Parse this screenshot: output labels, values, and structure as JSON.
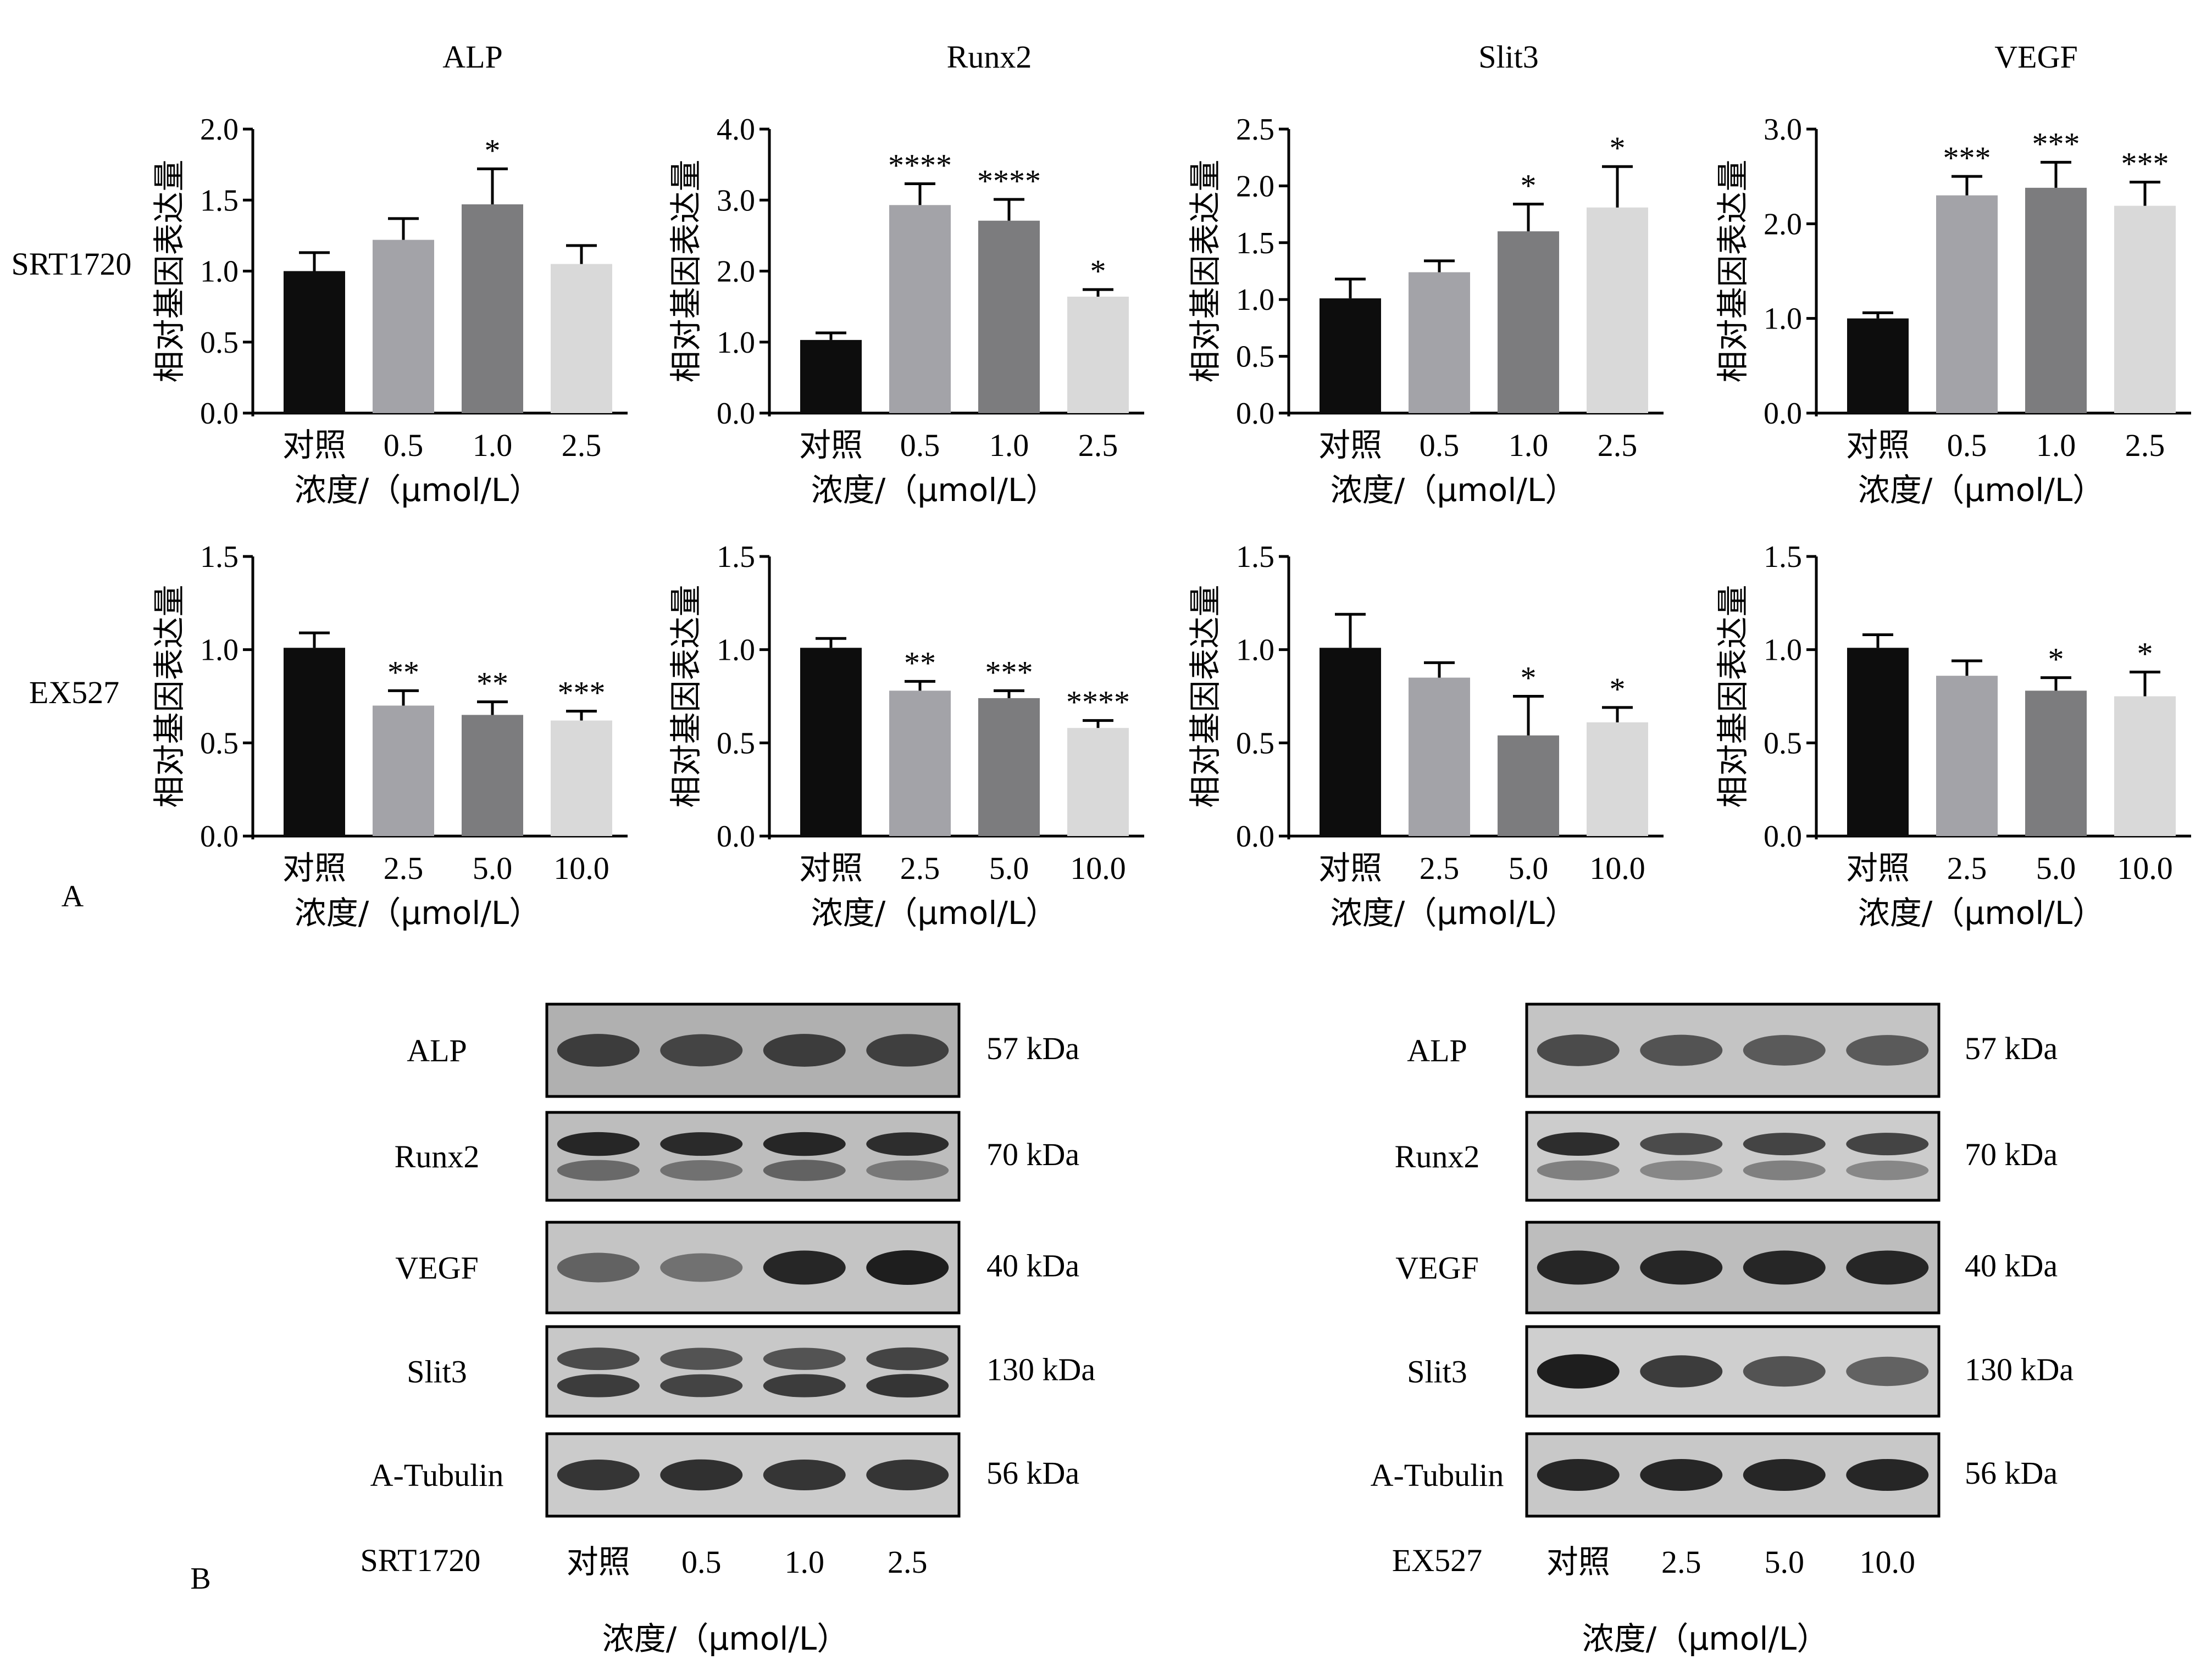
{
  "panel_labels": {
    "a": "A",
    "b": "B"
  },
  "rows": [
    {
      "label": "SRT1720"
    },
    {
      "label": "EX527"
    }
  ],
  "ylabel": "相对基因表达量",
  "xlabel": "浓度/（μmol/L）",
  "chart_data": [
    {
      "type": "bar",
      "title": "ALP",
      "row": 0,
      "col": 0,
      "categories": [
        "对照",
        "0.5",
        "1.0",
        "2.5"
      ],
      "values": [
        1.0,
        1.22,
        1.47,
        1.05
      ],
      "errors": [
        0.13,
        0.15,
        0.25,
        0.13
      ],
      "significance": [
        "",
        "",
        "*",
        ""
      ],
      "ylim": [
        0,
        2.0
      ],
      "yticks": [
        "0.0",
        "0.5",
        "1.0",
        "1.5",
        "2.0"
      ],
      "ylabel": "相对基因表达量",
      "xlabel": "浓度/（μmol/L）"
    },
    {
      "type": "bar",
      "title": "Runx2",
      "row": 0,
      "col": 1,
      "categories": [
        "对照",
        "0.5",
        "1.0",
        "2.5"
      ],
      "values": [
        1.03,
        2.93,
        2.71,
        1.64
      ],
      "errors": [
        0.1,
        0.3,
        0.3,
        0.1
      ],
      "significance": [
        "",
        "****",
        "****",
        "*"
      ],
      "ylim": [
        0,
        4.0
      ],
      "yticks": [
        "0.0",
        "1.0",
        "2.0",
        "3.0",
        "4.0"
      ],
      "ylabel": "相对基因表达量",
      "xlabel": "浓度/（μmol/L）"
    },
    {
      "type": "bar",
      "title": "Slit3",
      "row": 0,
      "col": 2,
      "categories": [
        "对照",
        "0.5",
        "1.0",
        "2.5"
      ],
      "values": [
        1.01,
        1.24,
        1.6,
        1.81
      ],
      "errors": [
        0.17,
        0.1,
        0.24,
        0.36
      ],
      "significance": [
        "",
        "",
        "*",
        "*"
      ],
      "ylim": [
        0,
        2.5
      ],
      "yticks": [
        "0.0",
        "0.5",
        "1.0",
        "1.5",
        "2.0",
        "2.5"
      ],
      "ylabel": "相对基因表达量",
      "xlabel": "浓度/（μmol/L）"
    },
    {
      "type": "bar",
      "title": "VEGF",
      "row": 0,
      "col": 3,
      "categories": [
        "对照",
        "0.5",
        "1.0",
        "2.5"
      ],
      "values": [
        1.0,
        2.3,
        2.38,
        2.19
      ],
      "errors": [
        0.06,
        0.2,
        0.27,
        0.25
      ],
      "significance": [
        "",
        "***",
        "***",
        "***"
      ],
      "ylim": [
        0,
        3.0
      ],
      "yticks": [
        "0.0",
        "1.0",
        "2.0",
        "3.0"
      ],
      "ylabel": "相对基因表达量",
      "xlabel": "浓度/（μmol/L）"
    },
    {
      "type": "bar",
      "title": "",
      "row": 1,
      "col": 0,
      "categories": [
        "对照",
        "2.5",
        "5.0",
        "10.0"
      ],
      "values": [
        1.01,
        0.7,
        0.65,
        0.62
      ],
      "errors": [
        0.08,
        0.08,
        0.07,
        0.05
      ],
      "significance": [
        "",
        "**",
        "**",
        "***"
      ],
      "ylim": [
        0,
        1.5
      ],
      "yticks": [
        "0.0",
        "0.5",
        "1.0",
        "1.5"
      ],
      "ylabel": "相对基因表达量",
      "xlabel": "浓度/（μmol/L）"
    },
    {
      "type": "bar",
      "title": "",
      "row": 1,
      "col": 1,
      "categories": [
        "对照",
        "2.5",
        "5.0",
        "10.0"
      ],
      "values": [
        1.01,
        0.78,
        0.74,
        0.58
      ],
      "errors": [
        0.05,
        0.05,
        0.04,
        0.04
      ],
      "significance": [
        "",
        "**",
        "***",
        "****"
      ],
      "ylim": [
        0,
        1.5
      ],
      "yticks": [
        "0.0",
        "0.5",
        "1.0",
        "1.5"
      ],
      "ylabel": "相对基因表达量",
      "xlabel": "浓度/（μmol/L）"
    },
    {
      "type": "bar",
      "title": "",
      "row": 1,
      "col": 2,
      "categories": [
        "对照",
        "2.5",
        "5.0",
        "10.0"
      ],
      "values": [
        1.01,
        0.85,
        0.54,
        0.61
      ],
      "errors": [
        0.18,
        0.08,
        0.21,
        0.08
      ],
      "significance": [
        "",
        "",
        "*",
        "*"
      ],
      "ylim": [
        0,
        1.5
      ],
      "yticks": [
        "0.0",
        "0.5",
        "1.0",
        "1.5"
      ],
      "ylabel": "相对基因表达量",
      "xlabel": "浓度/（μmol/L）"
    },
    {
      "type": "bar",
      "title": "",
      "row": 1,
      "col": 3,
      "categories": [
        "对照",
        "2.5",
        "5.0",
        "10.0"
      ],
      "values": [
        1.01,
        0.86,
        0.78,
        0.75
      ],
      "errors": [
        0.07,
        0.08,
        0.07,
        0.13
      ],
      "significance": [
        "",
        "",
        "*",
        "*"
      ],
      "ylim": [
        0,
        1.5
      ],
      "yticks": [
        "0.0",
        "0.5",
        "1.0",
        "1.5"
      ],
      "ylabel": "相对基因表达量",
      "xlabel": "浓度/（μmol/L）"
    }
  ],
  "bar_colors": [
    "#0d0d0d",
    "#a3a3a8",
    "#7c7c7e",
    "#d9d9d9"
  ],
  "blots": [
    {
      "name": "SRT1720",
      "group_label": "SRT1720",
      "lanes": [
        "对照",
        "0.5",
        "1.0",
        "2.5"
      ],
      "xlabel": "浓度/（μmol/L）",
      "proteins": [
        {
          "name": "ALP",
          "kda": "57 kDa",
          "bands": [
            [
              0.8
            ],
            [
              0.75
            ],
            [
              0.8
            ],
            [
              0.78
            ]
          ],
          "bg": "#b0b0b0"
        },
        {
          "name": "Runx2",
          "kda": "70 kDa",
          "bands": [
            [
              0.95,
              0.5
            ],
            [
              0.92,
              0.45
            ],
            [
              0.95,
              0.55
            ],
            [
              0.9,
              0.4
            ]
          ],
          "bg": "#bdbdbd"
        },
        {
          "name": "VEGF",
          "kda": "40 kDa",
          "bands": [
            [
              0.55
            ],
            [
              0.45
            ],
            [
              0.95
            ],
            [
              1.0
            ]
          ],
          "bg": "#c4c4c4"
        },
        {
          "name": "Slit3",
          "kda": "130 kDa",
          "bands": [
            [
              0.7,
              0.8
            ],
            [
              0.65,
              0.75
            ],
            [
              0.65,
              0.8
            ],
            [
              0.75,
              0.85
            ]
          ],
          "bg": "#c8c8c8"
        },
        {
          "name": "A-Tubulin",
          "kda": "56 kDa",
          "bands": [
            [
              0.85
            ],
            [
              0.88
            ],
            [
              0.85
            ],
            [
              0.85
            ]
          ],
          "bg": "#cbcbcb"
        }
      ]
    },
    {
      "name": "EX527",
      "group_label": "EX527",
      "lanes": [
        "对照",
        "2.5",
        "5.0",
        "10.0"
      ],
      "xlabel": "浓度/（μmol/L）",
      "proteins": [
        {
          "name": "ALP",
          "kda": "57 kDa",
          "bands": [
            [
              0.7
            ],
            [
              0.65
            ],
            [
              0.6
            ],
            [
              0.6
            ]
          ],
          "bg": "#c4c4c4"
        },
        {
          "name": "Runx2",
          "kda": "70 kDa",
          "bands": [
            [
              0.9,
              0.35
            ],
            [
              0.7,
              0.3
            ],
            [
              0.75,
              0.35
            ],
            [
              0.75,
              0.3
            ]
          ],
          "bg": "#cccccc"
        },
        {
          "name": "VEGF",
          "kda": "40 kDa",
          "bands": [
            [
              0.95
            ],
            [
              0.95
            ],
            [
              0.95
            ],
            [
              0.95
            ]
          ],
          "bg": "#bdbdbd"
        },
        {
          "name": "Slit3",
          "kda": "130 kDa",
          "bands": [
            [
              1.0
            ],
            [
              0.8
            ],
            [
              0.65
            ],
            [
              0.55
            ]
          ],
          "bg": "#cfcfcf"
        },
        {
          "name": "A-Tubulin",
          "kda": "56 kDa",
          "bands": [
            [
              0.95
            ],
            [
              0.95
            ],
            [
              0.95
            ],
            [
              0.95
            ]
          ],
          "bg": "#c8c8c8"
        }
      ]
    }
  ]
}
